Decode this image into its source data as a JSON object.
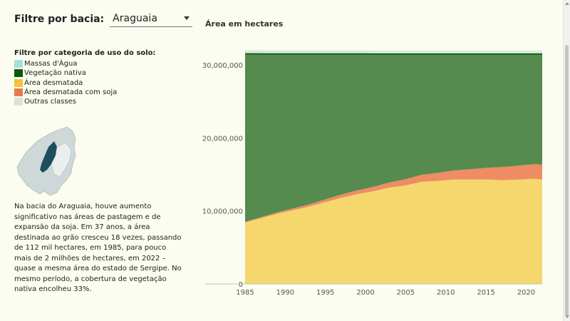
{
  "filter": {
    "label": "Filtre por bacia:",
    "selected": "Araguaia"
  },
  "legend": {
    "title": "Filtre por categoria de uso do solo:",
    "items": [
      {
        "label": "Massas d'Água",
        "color": "#a8e0d8"
      },
      {
        "label": "Vegetação nativa",
        "color": "#0d5a0d"
      },
      {
        "label": "Área desmatada",
        "color": "#f2c13d"
      },
      {
        "label": "Área desmatada com soja",
        "color": "#e9794a"
      },
      {
        "label": "Outras classes",
        "color": "#dde0dc"
      }
    ]
  },
  "map": {
    "highlight_color": "#1d4e5f",
    "base_color": "#cfd8d8"
  },
  "description": "Na bacia do Araguaia, houve aumento significativo nas áreas de pastagem e de expansão da soja. Em 37 anos, a área destinada ao grão cresceu 18 vezes, passando de 112 mil hectares, em 1985, para pouco mais de 2 milhões de hectares, em 2022 – quase a mesma área do estado de Sergipe. No mesmo período, a cobertura de vegetação nativa encolheu 33%.",
  "chart_data": {
    "type": "area",
    "stacked": true,
    "title": "Área em hectares",
    "x": [
      1985,
      1987,
      1989,
      1991,
      1993,
      1995,
      1997,
      1999,
      2001,
      2003,
      2005,
      2007,
      2009,
      2011,
      2013,
      2015,
      2017,
      2019,
      2021,
      2022
    ],
    "xticks": [
      "1985",
      "1990",
      "1995",
      "2000",
      "2005",
      "2010",
      "2015",
      "2020"
    ],
    "yticks": [
      "0",
      "10,000,000",
      "20,000,000",
      "30,000,000"
    ],
    "ylim": [
      0,
      34000000
    ],
    "series": [
      {
        "name": "Área desmatada",
        "color": "#f5d76e",
        "values": [
          8400000,
          9000000,
          9600000,
          10100000,
          10600000,
          11200000,
          11800000,
          12300000,
          12700000,
          13200000,
          13500000,
          14000000,
          14100000,
          14300000,
          14300000,
          14300000,
          14200000,
          14300000,
          14400000,
          14300000
        ]
      },
      {
        "name": "Área desmatada com soja",
        "color": "#ef8c63",
        "values": [
          112000,
          150000,
          200000,
          250000,
          300000,
          380000,
          450000,
          520000,
          600000,
          700000,
          850000,
          950000,
          1100000,
          1250000,
          1400000,
          1600000,
          1800000,
          1900000,
          2000000,
          2050000
        ]
      },
      {
        "name": "Vegetação nativa",
        "color": "#558b4e",
        "values": [
          23000000,
          22350000,
          21700000,
          21150000,
          20600000,
          19920000,
          19250000,
          18680000,
          18180000,
          17580000,
          17130000,
          16530000,
          16280000,
          15930000,
          15780000,
          15580000,
          15480000,
          15280000,
          15080000,
          15130000
        ]
      },
      {
        "name": "Massas d'Água",
        "color": "#a6e3d5",
        "values": [
          200000,
          200000,
          200000,
          200000,
          200000,
          200000,
          200000,
          200000,
          200000,
          200000,
          200000,
          200000,
          200000,
          200000,
          200000,
          200000,
          200000,
          200000,
          200000,
          200000
        ]
      },
      {
        "name": "Outras classes",
        "color": "#d9ebd6",
        "values": [
          300000,
          300000,
          300000,
          300000,
          300000,
          300000,
          300000,
          300000,
          300000,
          300000,
          300000,
          300000,
          300000,
          300000,
          300000,
          300000,
          300000,
          300000,
          300000,
          300000
        ]
      }
    ]
  }
}
